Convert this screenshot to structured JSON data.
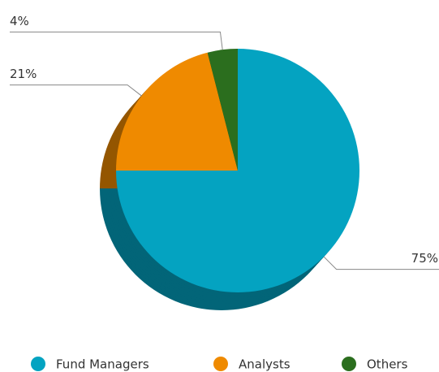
{
  "chart_data": {
    "type": "pie",
    "categories": [
      "Fund Managers",
      "Analysts",
      "Others"
    ],
    "values": [
      75,
      21,
      4
    ],
    "value_labels": [
      "75%",
      "21%",
      "4%"
    ],
    "colors": [
      "#04a3c1",
      "#ef8a00",
      "#2b6e1e"
    ],
    "legend": "bottom"
  }
}
